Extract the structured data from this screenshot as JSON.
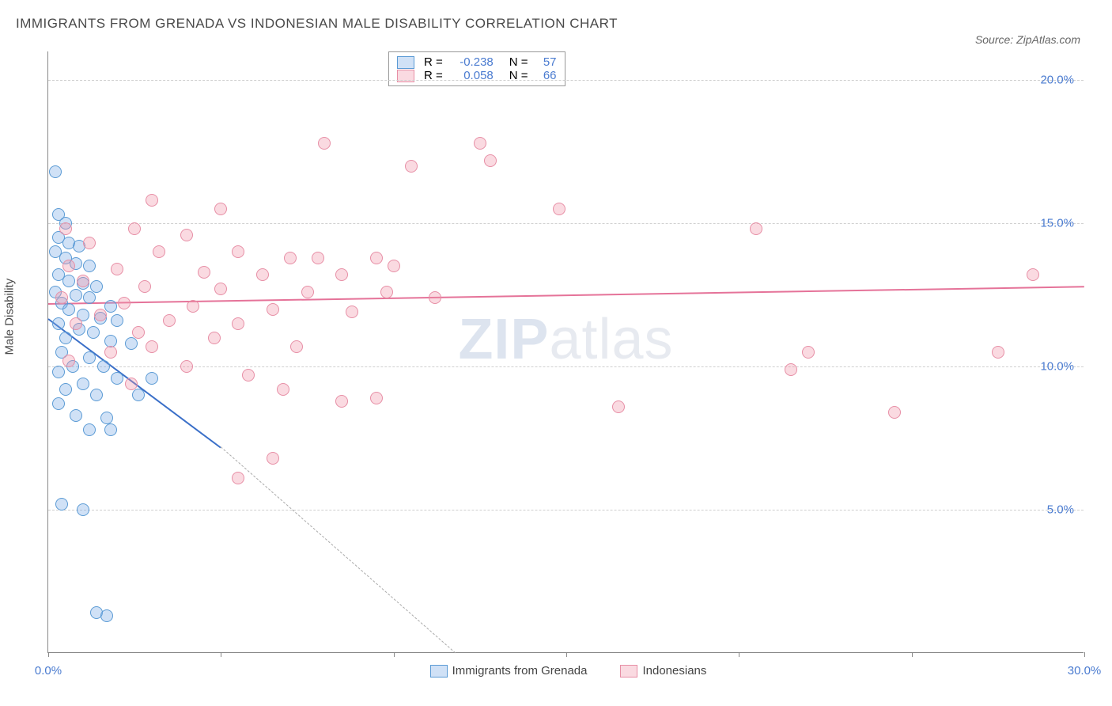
{
  "title": "IMMIGRANTS FROM GRENADA VS INDONESIAN MALE DISABILITY CORRELATION CHART",
  "source": "Source: ZipAtlas.com",
  "watermark_zip": "ZIP",
  "watermark_atlas": "atlas",
  "y_axis_label": "Male Disability",
  "chart": {
    "type": "scatter",
    "xlim": [
      0,
      30
    ],
    "ylim": [
      0,
      21
    ],
    "x_ticks": [
      0,
      5,
      10,
      15,
      20,
      25,
      30
    ],
    "x_tick_labels": [
      "0.0%",
      "",
      "",
      "",
      "",
      "",
      "30.0%"
    ],
    "y_ticks": [
      5,
      10,
      15,
      20
    ],
    "y_tick_labels": [
      "5.0%",
      "10.0%",
      "15.0%",
      "20.0%"
    ],
    "grid_color": "#d0d0d0",
    "background_color": "#ffffff",
    "series": [
      {
        "name": "Immigrants from Grenada",
        "fill": "rgba(120,170,230,0.35)",
        "stroke": "#5b9bd5",
        "r_label": "R =",
        "r_value": "-0.238",
        "n_label": "N =",
        "n_value": "57",
        "trend_color": "#3a6fc8",
        "trend": {
          "x1": 0,
          "y1": 11.7,
          "x2": 5.0,
          "y2": 7.2,
          "dash_to_x": 11.8,
          "dash_to_y": 0
        },
        "points": [
          [
            0.2,
            16.8
          ],
          [
            0.3,
            15.3
          ],
          [
            0.5,
            15.0
          ],
          [
            0.3,
            14.5
          ],
          [
            0.6,
            14.3
          ],
          [
            0.9,
            14.2
          ],
          [
            0.2,
            14.0
          ],
          [
            0.5,
            13.8
          ],
          [
            0.8,
            13.6
          ],
          [
            1.2,
            13.5
          ],
          [
            0.3,
            13.2
          ],
          [
            0.6,
            13.0
          ],
          [
            1.0,
            12.9
          ],
          [
            1.4,
            12.8
          ],
          [
            0.2,
            12.6
          ],
          [
            0.8,
            12.5
          ],
          [
            1.2,
            12.4
          ],
          [
            0.4,
            12.2
          ],
          [
            1.8,
            12.1
          ],
          [
            0.6,
            12.0
          ],
          [
            1.0,
            11.8
          ],
          [
            1.5,
            11.7
          ],
          [
            2.0,
            11.6
          ],
          [
            0.3,
            11.5
          ],
          [
            0.9,
            11.3
          ],
          [
            1.3,
            11.2
          ],
          [
            0.5,
            11.0
          ],
          [
            1.8,
            10.9
          ],
          [
            2.4,
            10.8
          ],
          [
            0.4,
            10.5
          ],
          [
            1.2,
            10.3
          ],
          [
            0.7,
            10.0
          ],
          [
            1.6,
            10.0
          ],
          [
            0.3,
            9.8
          ],
          [
            2.0,
            9.6
          ],
          [
            1.0,
            9.4
          ],
          [
            3.0,
            9.6
          ],
          [
            0.5,
            9.2
          ],
          [
            1.4,
            9.0
          ],
          [
            0.3,
            8.7
          ],
          [
            2.6,
            9.0
          ],
          [
            0.8,
            8.3
          ],
          [
            1.7,
            8.2
          ],
          [
            1.8,
            7.8
          ],
          [
            1.2,
            7.8
          ],
          [
            0.4,
            5.2
          ],
          [
            1.0,
            5.0
          ],
          [
            1.4,
            1.4
          ],
          [
            1.7,
            1.3
          ]
        ]
      },
      {
        "name": "Indonesians",
        "fill": "rgba(240,150,170,0.35)",
        "stroke": "#e78fa6",
        "r_label": "R =",
        "r_value": "0.058",
        "n_label": "N =",
        "n_value": "66",
        "trend_color": "#e57399",
        "trend": {
          "x1": 0,
          "y1": 12.2,
          "x2": 30,
          "y2": 12.8
        },
        "points": [
          [
            8.0,
            17.8
          ],
          [
            12.5,
            17.8
          ],
          [
            10.5,
            17.0
          ],
          [
            12.8,
            17.2
          ],
          [
            3.0,
            15.8
          ],
          [
            5.0,
            15.5
          ],
          [
            14.8,
            15.5
          ],
          [
            0.5,
            14.8
          ],
          [
            2.5,
            14.8
          ],
          [
            4.0,
            14.6
          ],
          [
            20.5,
            14.8
          ],
          [
            1.2,
            14.3
          ],
          [
            3.2,
            14.0
          ],
          [
            5.5,
            14.0
          ],
          [
            7.0,
            13.8
          ],
          [
            7.8,
            13.8
          ],
          [
            9.5,
            13.8
          ],
          [
            0.6,
            13.5
          ],
          [
            2.0,
            13.4
          ],
          [
            4.5,
            13.3
          ],
          [
            6.2,
            13.2
          ],
          [
            8.5,
            13.2
          ],
          [
            10.0,
            13.5
          ],
          [
            28.5,
            13.2
          ],
          [
            1.0,
            13.0
          ],
          [
            2.8,
            12.8
          ],
          [
            5.0,
            12.7
          ],
          [
            7.5,
            12.6
          ],
          [
            9.8,
            12.6
          ],
          [
            11.2,
            12.4
          ],
          [
            0.4,
            12.4
          ],
          [
            2.2,
            12.2
          ],
          [
            4.2,
            12.1
          ],
          [
            6.5,
            12.0
          ],
          [
            8.8,
            11.9
          ],
          [
            1.5,
            11.8
          ],
          [
            3.5,
            11.6
          ],
          [
            5.5,
            11.5
          ],
          [
            0.8,
            11.5
          ],
          [
            2.6,
            11.2
          ],
          [
            4.8,
            11.0
          ],
          [
            3.0,
            10.7
          ],
          [
            7.2,
            10.7
          ],
          [
            1.8,
            10.5
          ],
          [
            22.0,
            10.5
          ],
          [
            27.5,
            10.5
          ],
          [
            0.6,
            10.2
          ],
          [
            4.0,
            10.0
          ],
          [
            5.8,
            9.7
          ],
          [
            21.5,
            9.9
          ],
          [
            2.4,
            9.4
          ],
          [
            6.8,
            9.2
          ],
          [
            8.5,
            8.8
          ],
          [
            9.5,
            8.9
          ],
          [
            16.5,
            8.6
          ],
          [
            24.5,
            8.4
          ],
          [
            6.5,
            6.8
          ],
          [
            5.5,
            6.1
          ]
        ]
      }
    ],
    "bottom_legend": [
      {
        "label": "Immigrants from Grenada",
        "fill": "rgba(120,170,230,0.35)",
        "stroke": "#5b9bd5"
      },
      {
        "label": "Indonesians",
        "fill": "rgba(240,150,170,0.35)",
        "stroke": "#e78fa6"
      }
    ]
  }
}
